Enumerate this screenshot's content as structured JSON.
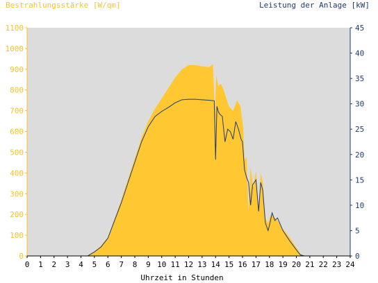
{
  "chart_data": {
    "type": "area",
    "left_axis_label": "Bestrahlungsstärke [W/qm]",
    "right_axis_label": "Leistung der Anlage [kW]",
    "xlabel": "Uhrzeit in Stunden",
    "xlim": [
      0,
      24
    ],
    "ylim_left": [
      0,
      1100
    ],
    "ylim_right": [
      0,
      45
    ],
    "x_ticks": [
      "0",
      "1",
      "2",
      "3",
      "4",
      "5",
      "6",
      "7",
      "8",
      "9",
      "10",
      "11",
      "12",
      "13",
      "14",
      "15",
      "16",
      "17",
      "18",
      "19",
      "20",
      "21",
      "22",
      "23",
      "24"
    ],
    "y_ticks_left": [
      "0",
      "100",
      "200",
      "300",
      "400",
      "500",
      "600",
      "700",
      "800",
      "900",
      "1000",
      "1100"
    ],
    "y_ticks_right": [
      "0",
      "5",
      "10",
      "15",
      "20",
      "25",
      "30",
      "35",
      "40",
      "45"
    ],
    "grid": false,
    "colors": {
      "plot_background": "#dcdcdc",
      "irradiance_fill": "#ffc832",
      "left_axis": "#f5c32c",
      "power_line": "#1f3a6e",
      "right_axis": "#1f3a6e"
    },
    "series": [
      {
        "axis": "left",
        "style": "filled-area",
        "x": [
          4.5,
          5.0,
          5.5,
          6.0,
          6.5,
          7.0,
          7.5,
          8.0,
          8.5,
          9.0,
          9.5,
          10.0,
          10.5,
          11.0,
          11.5,
          12.0,
          12.5,
          13.0,
          13.5,
          13.8,
          13.95,
          14.05,
          14.2,
          14.4,
          14.6,
          14.8,
          15.0,
          15.3,
          15.6,
          15.85,
          16.05,
          16.15,
          16.3,
          16.45,
          16.6,
          16.8,
          17.0,
          17.2,
          17.35,
          17.5,
          17.7,
          17.9,
          18.1,
          18.3,
          18.6,
          19.0,
          19.5,
          20.0,
          20.3,
          20.6,
          21.0
        ],
        "values": [
          0,
          20,
          50,
          90,
          180,
          270,
          370,
          470,
          570,
          650,
          710,
          760,
          810,
          860,
          900,
          920,
          920,
          915,
          910,
          925,
          700,
          870,
          820,
          830,
          800,
          760,
          720,
          700,
          750,
          720,
          620,
          460,
          480,
          210,
          430,
          330,
          410,
          230,
          400,
          360,
          180,
          160,
          200,
          190,
          170,
          130,
          90,
          40,
          10,
          0,
          0
        ]
      },
      {
        "axis": "right",
        "style": "line",
        "x": [
          4.5,
          5.0,
          5.5,
          6.0,
          6.5,
          7.0,
          7.5,
          8.0,
          8.5,
          9.0,
          9.5,
          10.0,
          10.5,
          11.0,
          11.5,
          12.0,
          12.5,
          13.0,
          13.5,
          13.9,
          14.0,
          14.1,
          14.2,
          14.3,
          14.5,
          14.7,
          14.9,
          15.1,
          15.3,
          15.5,
          15.7,
          15.9,
          16.0,
          16.15,
          16.3,
          16.45,
          16.6,
          16.75,
          17.0,
          17.2,
          17.35,
          17.5,
          17.7,
          17.9,
          18.0,
          18.2,
          18.4,
          18.6,
          19.0,
          19.5,
          20.0,
          20.3,
          20.6,
          21.0
        ],
        "values": [
          0,
          0.8,
          1.8,
          3.5,
          7.0,
          10.5,
          14.5,
          18.5,
          22.5,
          25.5,
          27.5,
          28.5,
          29.3,
          30.2,
          30.8,
          30.9,
          30.9,
          30.8,
          30.7,
          30.6,
          19.0,
          29.5,
          28.5,
          28.0,
          27.5,
          22.5,
          25.0,
          24.5,
          23.0,
          26.5,
          25.0,
          23.0,
          22.5,
          17.0,
          15.5,
          14.5,
          10.0,
          14.0,
          15.0,
          8.8,
          14.5,
          13.0,
          6.5,
          5.0,
          6.0,
          8.5,
          7.0,
          7.5,
          5.0,
          3.0,
          1.2,
          0.2,
          0,
          0
        ]
      }
    ]
  }
}
